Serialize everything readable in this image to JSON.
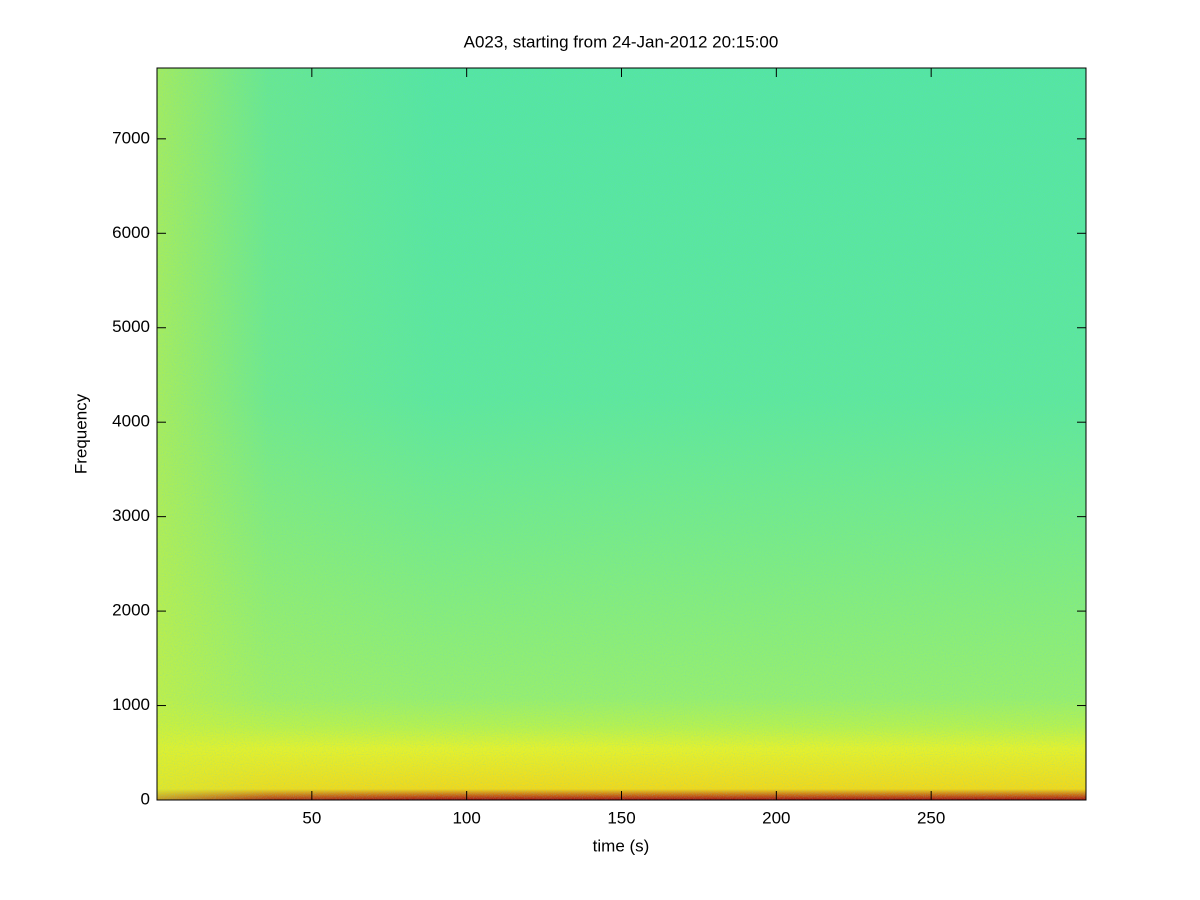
{
  "chart_data": {
    "type": "spectrogram",
    "title": "A023, starting from 24-Jan-2012 20:15:00",
    "xlabel": "time (s)",
    "ylabel": "Frequency",
    "xlim": [
      0,
      300
    ],
    "xticks": [
      50,
      100,
      150,
      200,
      250
    ],
    "ylim": [
      0,
      7750
    ],
    "yticks": [
      0,
      1000,
      2000,
      3000,
      4000,
      5000,
      6000,
      7000
    ]
  }
}
